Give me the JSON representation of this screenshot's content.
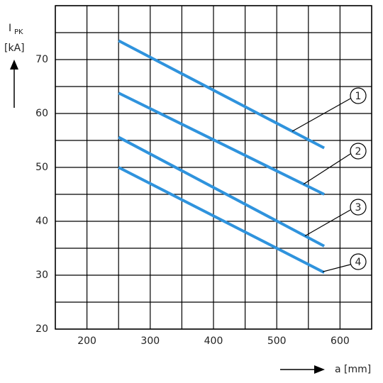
{
  "chart_data": {
    "type": "line",
    "y_label": "I",
    "y_label_sub": "PK",
    "y_unit": "[kA]",
    "x_label": "a [mm]",
    "x": [
      250,
      575
    ],
    "series": [
      {
        "name": "1",
        "color": "#2f93dd",
        "values": [
          73.5,
          53.6
        ]
      },
      {
        "name": "2",
        "color": "#2f93dd",
        "values": [
          63.8,
          45
        ]
      },
      {
        "name": "3",
        "color": "#2f93dd",
        "values": [
          55.6,
          35.4
        ]
      },
      {
        "name": "4",
        "color": "#2f93dd",
        "values": [
          50,
          30.5
        ]
      }
    ],
    "xlim": [
      150,
      650
    ],
    "ylim": [
      20,
      80
    ],
    "xticks": [
      200,
      300,
      400,
      500,
      600
    ],
    "yticks": [
      20,
      30,
      40,
      50,
      60,
      70
    ],
    "xgrid": [
      150,
      200,
      250,
      300,
      350,
      400,
      450,
      500,
      550,
      600,
      650
    ],
    "ygrid": [
      20,
      25,
      30,
      35,
      40,
      45,
      50,
      55,
      60,
      65,
      70,
      75,
      80
    ],
    "grid": true
  }
}
